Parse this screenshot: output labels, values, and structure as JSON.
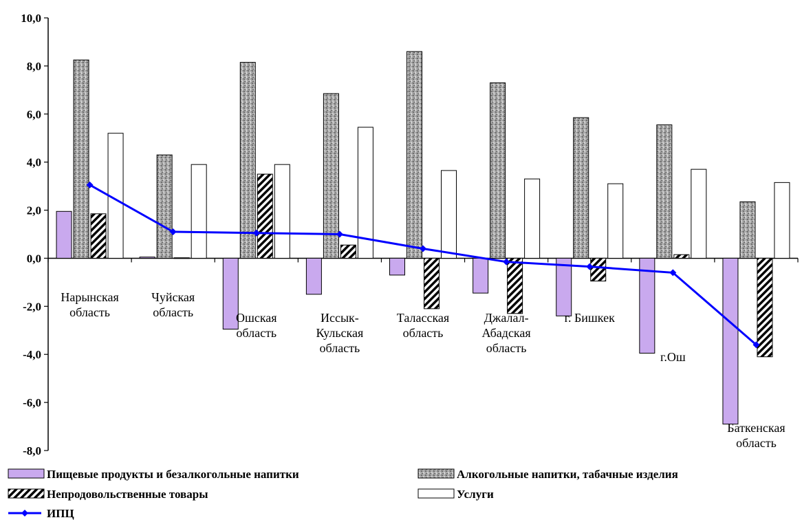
{
  "chart_data": {
    "type": "bar",
    "categories": [
      [
        "Нарынская",
        "область"
      ],
      [
        "Чуйская",
        "область"
      ],
      [
        "Ошская",
        "область"
      ],
      [
        "Иссык-",
        "Кульская",
        "область"
      ],
      [
        "Таласская",
        "область"
      ],
      [
        "Джалал-",
        "Абадская",
        "область"
      ],
      [
        "г. Бишкек"
      ],
      [
        "г.Ош"
      ],
      [
        "Баткенская",
        "область"
      ]
    ],
    "series": [
      {
        "name": "Пищевые продукты и безалкогольные напитки",
        "kind": "bar",
        "color": "#c9a9ee",
        "values": [
          1.95,
          0.05,
          -2.95,
          -1.5,
          -0.7,
          -1.45,
          -2.4,
          -3.95,
          -6.9
        ]
      },
      {
        "name": "Алкогольные напитки, табачные изделия",
        "kind": "bar",
        "color": "#9a9a9a",
        "values": [
          8.25,
          4.3,
          8.15,
          6.85,
          8.6,
          7.3,
          5.85,
          5.55,
          2.35
        ]
      },
      {
        "name": "Непродовольственные товары",
        "kind": "bar",
        "color": "#000000",
        "values": [
          1.85,
          0.02,
          3.5,
          0.55,
          -2.1,
          -2.3,
          -0.95,
          0.15,
          -4.1
        ]
      },
      {
        "name": "Услуги",
        "kind": "bar",
        "color": "#ffffff",
        "values": [
          5.2,
          3.9,
          3.9,
          5.45,
          3.65,
          3.3,
          3.1,
          3.7,
          3.15
        ]
      },
      {
        "name": "ИПЦ",
        "kind": "line",
        "color": "#0000ff",
        "values": [
          3.05,
          1.1,
          1.05,
          1.0,
          0.4,
          -0.15,
          -0.35,
          -0.6,
          -3.6
        ]
      }
    ],
    "yticks": [
      "10,0",
      "8,0",
      "6,0",
      "4,0",
      "2,0",
      "0,0",
      "-2,0",
      "-4,0",
      "-6,0",
      "-8,0"
    ],
    "ylim": [
      -8,
      10
    ],
    "grid": false,
    "legend_position": "bottom"
  }
}
